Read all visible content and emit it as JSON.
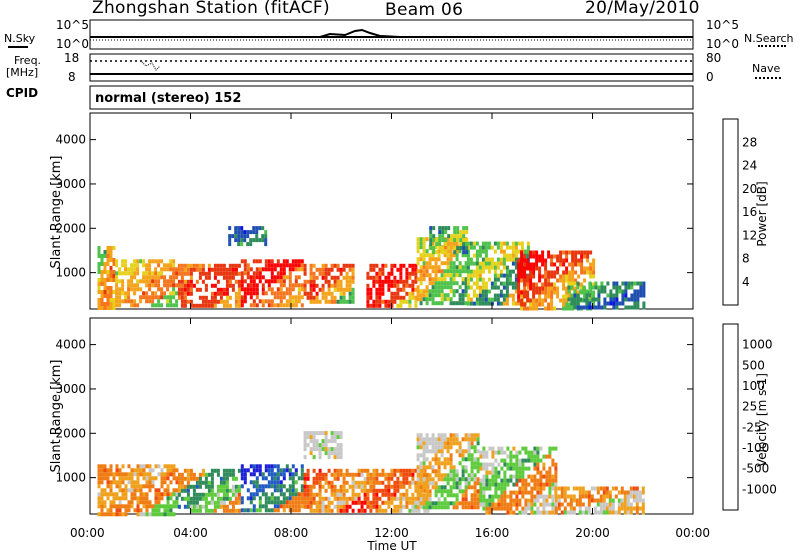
{
  "header": {
    "station": "Zhongshan Station (fitACF)",
    "beam": "Beam 06",
    "date": "20/May/2010"
  },
  "nsky_panel": {
    "left_label": "N.Sky",
    "left_ticks": [
      "10^5",
      "10^0"
    ],
    "right_ticks": [
      "10^5",
      "10^0"
    ],
    "right_label": "N.Search"
  },
  "freq_panel": {
    "left_label_line1": "Freq.",
    "left_label_line2": "[MHz]",
    "left_ticks": [
      "18",
      "8"
    ],
    "right_ticks": [
      "80",
      "0"
    ],
    "right_label": "Nave"
  },
  "cpid": {
    "label": "CPID",
    "text": "normal (stereo) 152"
  },
  "x_axis": {
    "label": "Time UT",
    "ticks": [
      "00:00",
      "04:00",
      "08:00",
      "12:00",
      "16:00",
      "20:00",
      "00:00"
    ]
  },
  "y_axis": {
    "label": "Slant Range [km]",
    "ticks": [
      "1000",
      "2000",
      "3000",
      "4000"
    ]
  },
  "colors": {
    "power_scale": [
      "#0a14e6",
      "#1f4fb0",
      "#2e8c5a",
      "#4ec24a",
      "#e6d21c",
      "#f5a31a",
      "#f5761e",
      "#e8360f",
      "#ff0000"
    ],
    "velocity_scale": [
      "#1b1fd6",
      "#1f5bc2",
      "#2f8b5a",
      "#5ecb3c",
      "#c8c8c8",
      "#f0a11e",
      "#f07c14",
      "#f04a0e",
      "#ff0000"
    ]
  },
  "chart_data": [
    {
      "type": "heatmap",
      "name": "power",
      "xlabel": "Time UT",
      "ylabel": "Slant Range [km]",
      "colorbar_label": "Power [dB]",
      "colorbar_ticks": [
        "4",
        "8",
        "12",
        "16",
        "20",
        "24",
        "28"
      ],
      "xlim": [
        0,
        24
      ],
      "ylim": [
        180,
        4600
      ],
      "blobs": [
        {
          "t0": 0.3,
          "t1": 1.0,
          "r0": 200,
          "r1": 1600,
          "levels": [
            3,
            5,
            6,
            4
          ]
        },
        {
          "t0": 1.0,
          "t1": 3.5,
          "r0": 250,
          "r1": 1300,
          "levels": [
            4,
            5,
            6,
            3
          ]
        },
        {
          "t0": 3.5,
          "t1": 6.0,
          "r0": 250,
          "r1": 1200,
          "levels": [
            6,
            7,
            7,
            5
          ]
        },
        {
          "t0": 6.0,
          "t1": 8.5,
          "r0": 250,
          "r1": 1300,
          "levels": [
            7,
            8,
            6,
            5
          ]
        },
        {
          "t0": 8.5,
          "t1": 10.5,
          "r0": 300,
          "r1": 1200,
          "levels": [
            6,
            7,
            5,
            3
          ]
        },
        {
          "t0": 11.0,
          "t1": 13.0,
          "r0": 250,
          "r1": 1200,
          "levels": [
            7,
            8,
            7,
            4
          ]
        },
        {
          "t0": 13.0,
          "t1": 15.0,
          "r0": 300,
          "r1": 1800,
          "levels": [
            4,
            5,
            3,
            2
          ]
        },
        {
          "t0": 15.0,
          "t1": 17.5,
          "r0": 300,
          "r1": 1700,
          "levels": [
            3,
            4,
            2,
            5
          ]
        },
        {
          "t0": 17.0,
          "t1": 20.0,
          "r0": 200,
          "r1": 1500,
          "levels": [
            8,
            7,
            5,
            3
          ]
        },
        {
          "t0": 19.0,
          "t1": 22.0,
          "r0": 200,
          "r1": 800,
          "levels": [
            3,
            2,
            1,
            2
          ]
        },
        {
          "t0": 5.5,
          "t1": 7.0,
          "r0": 1600,
          "r1": 2050,
          "levels": [
            1,
            1,
            2,
            1
          ]
        },
        {
          "t0": 13.5,
          "t1": 15.0,
          "r0": 1500,
          "r1": 2050,
          "levels": [
            2,
            3,
            4,
            2
          ]
        }
      ]
    },
    {
      "type": "heatmap",
      "name": "velocity",
      "xlabel": "Time UT",
      "ylabel": "Slant Range [km]",
      "colorbar_label": "Velocity [m s-1]",
      "colorbar_ticks": [
        "-1000",
        "-500",
        "-100",
        "-25",
        "25",
        "100",
        "500",
        "1000"
      ],
      "xlim": [
        0,
        24
      ],
      "ylim": [
        180,
        4600
      ],
      "blobs": [
        {
          "t0": 0.3,
          "t1": 3.5,
          "r0": 200,
          "r1": 1300,
          "levels": [
            6,
            5,
            6,
            3
          ]
        },
        {
          "t0": 3.5,
          "t1": 6.0,
          "r0": 250,
          "r1": 1200,
          "levels": [
            6,
            2,
            3,
            6
          ]
        },
        {
          "t0": 6.0,
          "t1": 8.5,
          "r0": 300,
          "r1": 1300,
          "levels": [
            0,
            1,
            2,
            6
          ]
        },
        {
          "t0": 8.5,
          "t1": 11.0,
          "r0": 250,
          "r1": 1200,
          "levels": [
            7,
            6,
            5,
            8
          ]
        },
        {
          "t0": 11.0,
          "t1": 13.5,
          "r0": 250,
          "r1": 1200,
          "levels": [
            6,
            7,
            5,
            4
          ]
        },
        {
          "t0": 13.0,
          "t1": 15.5,
          "r0": 300,
          "r1": 2000,
          "levels": [
            4,
            5,
            3,
            6
          ]
        },
        {
          "t0": 15.5,
          "t1": 18.5,
          "r0": 250,
          "r1": 1700,
          "levels": [
            4,
            3,
            6,
            4
          ]
        },
        {
          "t0": 18.5,
          "t1": 22.0,
          "r0": 200,
          "r1": 800,
          "levels": [
            5,
            6,
            4,
            5
          ]
        },
        {
          "t0": 8.5,
          "t1": 10.0,
          "r0": 1500,
          "r1": 2050,
          "levels": [
            4,
            4,
            4,
            4
          ]
        }
      ]
    }
  ]
}
